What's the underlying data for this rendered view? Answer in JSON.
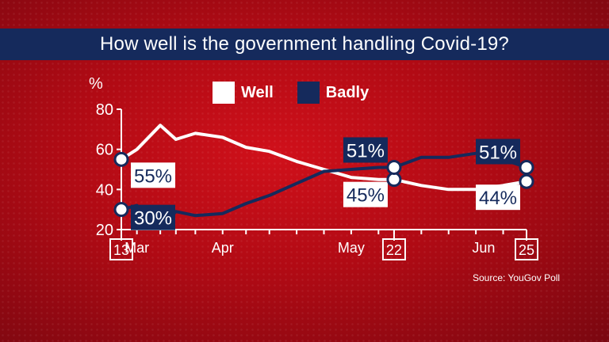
{
  "title": "How well is the government handling Covid-19?",
  "source": "Source: YouGov Poll",
  "colors": {
    "well": "#ffffff",
    "badly": "#152a5c",
    "axis": "#ffffff"
  },
  "chart_data": {
    "type": "line",
    "title": "How well is the government handling Covid-19?",
    "ylabel": "%",
    "ylim": [
      20,
      80
    ],
    "yticks": [
      20,
      40,
      60,
      80
    ],
    "x_start": "13 Mar",
    "x_end": "25 Jun",
    "month_labels": [
      "Mar",
      "Apr",
      "May",
      "Jun"
    ],
    "boxed_day_labels": [
      "13",
      "22",
      "25"
    ],
    "legend_position": "top-center",
    "series": [
      {
        "name": "Well",
        "color": "#ffffff",
        "x": [
          "13 Mar",
          "17 Mar",
          "23 Mar",
          "27 Mar",
          "1 Apr",
          "8 Apr",
          "14 Apr",
          "20 Apr",
          "27 Apr",
          "4 May",
          "11 May",
          "18 May",
          "22 May",
          "29 May",
          "5 Jun",
          "12 Jun",
          "19 Jun",
          "25 Jun"
        ],
        "values": [
          55,
          60,
          72,
          65,
          68,
          66,
          61,
          59,
          54,
          50,
          46,
          45,
          45,
          42,
          40,
          40,
          42,
          44
        ],
        "labels": [
          {
            "x": "13 Mar",
            "text": "55%"
          },
          {
            "x": "22 May",
            "text": "45%"
          },
          {
            "x": "25 Jun",
            "text": "44%"
          }
        ]
      },
      {
        "name": "Badly",
        "color": "#152a5c",
        "x": [
          "13 Mar",
          "17 Mar",
          "23 Mar",
          "27 Mar",
          "1 Apr",
          "8 Apr",
          "14 Apr",
          "20 Apr",
          "27 Apr",
          "4 May",
          "11 May",
          "18 May",
          "22 May",
          "29 May",
          "5 Jun",
          "12 Jun",
          "19 Jun",
          "25 Jun"
        ],
        "values": [
          30,
          32,
          21,
          29,
          27,
          28,
          33,
          37,
          43,
          49,
          50,
          51,
          51,
          56,
          56,
          58,
          55,
          51
        ],
        "labels": [
          {
            "x": "13 Mar",
            "text": "30%"
          },
          {
            "x": "22 May",
            "text": "51%"
          },
          {
            "x": "25 Jun",
            "text": "51%"
          }
        ]
      }
    ]
  }
}
